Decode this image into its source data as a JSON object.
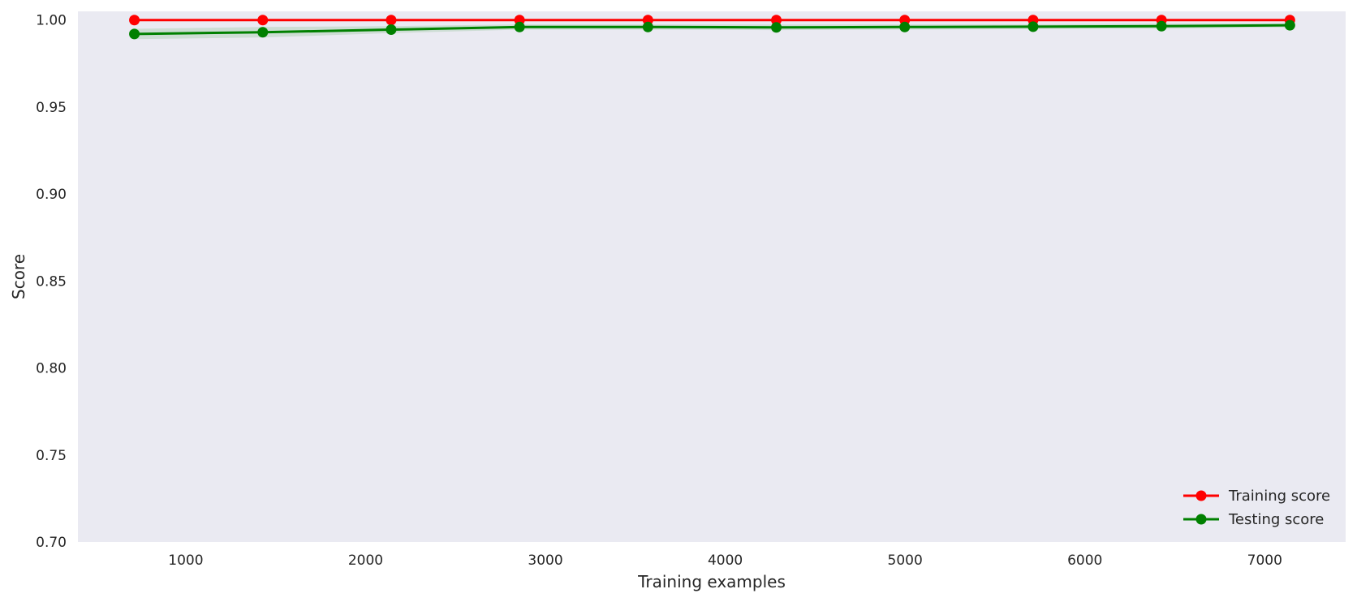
{
  "chart_data": {
    "type": "line",
    "title": "",
    "xlabel": "Training examples",
    "ylabel": "Score",
    "xlim": [
      400,
      7450
    ],
    "ylim": [
      0.7,
      1.005
    ],
    "xticks": [
      1000,
      2000,
      3000,
      4000,
      5000,
      6000,
      7000
    ],
    "yticks": [
      0.7,
      0.75,
      0.8,
      0.85,
      0.9,
      0.95,
      1.0
    ],
    "xtick_labels": [
      "1000",
      "2000",
      "3000",
      "4000",
      "5000",
      "6000",
      "7000"
    ],
    "ytick_labels": [
      "0.70",
      "0.75",
      "0.80",
      "0.85",
      "0.90",
      "0.95",
      "1.00"
    ],
    "grid": false,
    "background": "#eaeaf2",
    "legend": {
      "placement": "lower-right"
    },
    "x": [
      714,
      1428,
      2142,
      2856,
      3570,
      4284,
      4998,
      5712,
      6426,
      7140
    ],
    "series": [
      {
        "name": "Training score",
        "color": "#ff0000",
        "values": [
          1.0,
          1.0,
          1.0,
          1.0,
          1.0,
          1.0,
          1.0,
          1.0,
          1.0,
          1.0
        ],
        "band_low": [
          1.0,
          1.0,
          1.0,
          1.0,
          1.0,
          1.0,
          1.0,
          1.0,
          1.0,
          1.0
        ],
        "band_high": [
          1.0,
          1.0,
          1.0,
          1.0,
          1.0,
          1.0,
          1.0,
          1.0,
          1.0,
          1.0
        ]
      },
      {
        "name": "Testing score",
        "color": "#008000",
        "values": [
          0.992,
          0.993,
          0.9945,
          0.996,
          0.996,
          0.9958,
          0.996,
          0.9962,
          0.9965,
          0.997
        ],
        "band_low": [
          0.989,
          0.99,
          0.9925,
          0.9945,
          0.9945,
          0.9942,
          0.9945,
          0.9948,
          0.995,
          0.9958
        ],
        "band_high": [
          0.995,
          0.996,
          0.9965,
          0.9975,
          0.9975,
          0.9974,
          0.9975,
          0.9976,
          0.998,
          0.9982
        ]
      }
    ]
  }
}
